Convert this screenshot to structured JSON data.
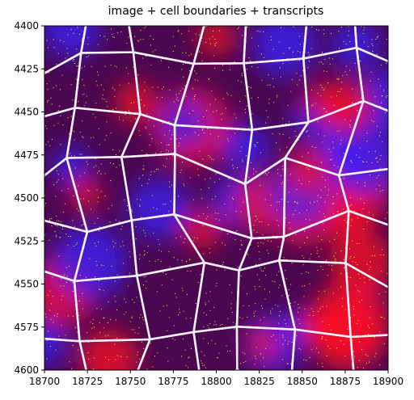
{
  "chart_data": {
    "type": "image",
    "title": "image + cell boundaries + transcripts",
    "xlim": [
      18700,
      18900
    ],
    "ylim": [
      4600,
      4400
    ],
    "xticks": [
      18700,
      18725,
      18750,
      18775,
      18800,
      18825,
      18850,
      18875,
      18900
    ],
    "yticks": [
      4400,
      4425,
      4450,
      4475,
      4500,
      4525,
      4550,
      4575,
      4600
    ]
  }
}
